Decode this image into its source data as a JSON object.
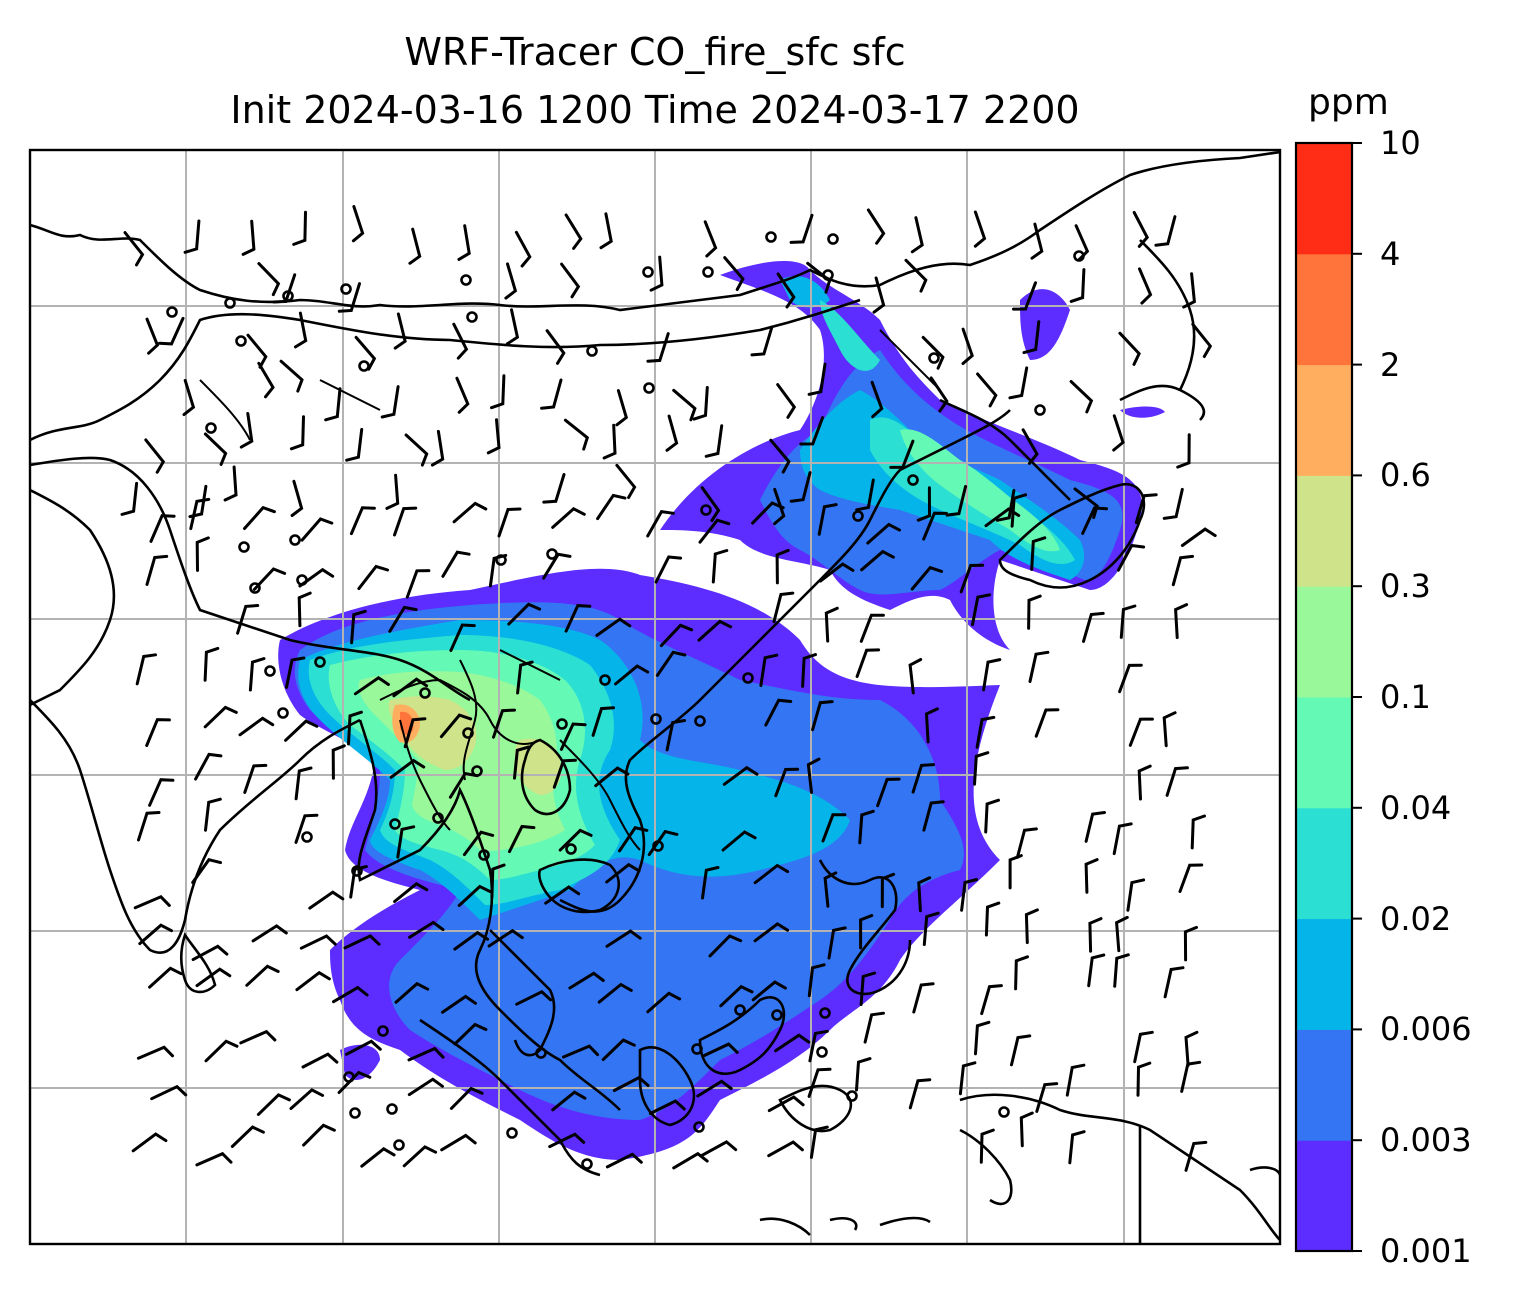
{
  "title": {
    "line1": "WRF-Tracer CO_fire_sfc sfc",
    "line2": "Init 2024-03-16 1200 Time 2024-03-17 2200"
  },
  "colorbar": {
    "unit": "ppm",
    "levels": [
      "0.001",
      "0.003",
      "0.006",
      "0.02",
      "0.04",
      "0.1",
      "0.3",
      "0.6",
      "2",
      "4",
      "10"
    ],
    "colors": [
      "#5d2cff",
      "#3375f2",
      "#05b5ea",
      "#2bdfd2",
      "#65f9b6",
      "#99f89a",
      "#cfe38a",
      "#ffae5f",
      "#ff743a",
      "#ff2c16"
    ]
  },
  "map": {
    "field": "CO_fire_sfc",
    "gridlines": true,
    "wind_barbs": true,
    "coastline_color": "#000000",
    "grid_color": "#b3b3b3"
  }
}
